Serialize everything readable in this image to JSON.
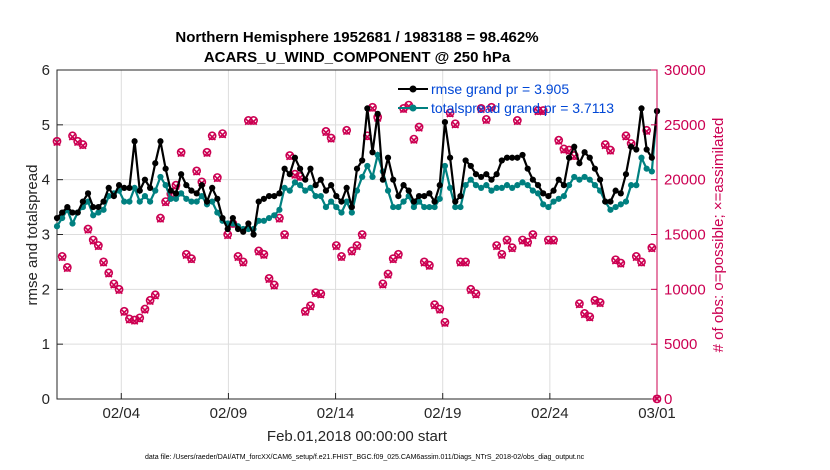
{
  "chart_data": {
    "type": "line",
    "title_line1": "Northern Hemisphere 1952681 / 1983188 = 98.462%",
    "title_line2": "ACARS_U_WIND_COMPONENT @ 250 hPa",
    "xlabel": "Feb.01,2018 00:00:00 start",
    "ylabel_left": "rmse and totalspread",
    "ylabel_right": "# of obs: o=possible; ×=assimilated",
    "footnote": "data file: /Users/raeder/DAI/ATM_forcXX/CAM6_setup/f.e21.FHIST_BGC.f09_025.CAM6assim.011/Diags_NTrS_2018-02/obs_diag_output.nc",
    "xlim": [
      0,
      28
    ],
    "ylim_left": [
      0,
      6
    ],
    "ylim_right": [
      0,
      30000
    ],
    "x_ticks": [
      {
        "pos": 3,
        "label": "02/04"
      },
      {
        "pos": 8,
        "label": "02/09"
      },
      {
        "pos": 13,
        "label": "02/14"
      },
      {
        "pos": 18,
        "label": "02/19"
      },
      {
        "pos": 23,
        "label": "02/24"
      },
      {
        "pos": 28,
        "label": "03/01"
      }
    ],
    "y_ticks_left": [
      "0",
      "1",
      "2",
      "3",
      "4",
      "5",
      "6"
    ],
    "y_ticks_right": [
      "0",
      "5000",
      "10000",
      "15000",
      "20000",
      "25000",
      "30000"
    ],
    "grid": true,
    "legend_placement": "top-right",
    "series": [
      {
        "name": "rmse grand pr = 3.905",
        "color": "#000000",
        "axis": "left",
        "values": [
          3.3,
          3.4,
          3.5,
          3.4,
          3.4,
          3.6,
          3.75,
          3.5,
          3.5,
          3.6,
          3.85,
          3.7,
          3.9,
          3.85,
          3.85,
          4.7,
          3.8,
          4.0,
          3.85,
          4.3,
          4.7,
          4.2,
          3.8,
          3.75,
          4.1,
          3.9,
          3.8,
          3.75,
          3.9,
          3.6,
          3.85,
          3.65,
          3.3,
          3.1,
          3.3,
          3.1,
          3.05,
          3.2,
          3.0,
          3.6,
          3.65,
          3.7,
          3.7,
          3.75,
          4.2,
          4.1,
          4.4,
          4.2,
          4.0,
          4.2,
          3.9,
          4.0,
          3.8,
          3.9,
          3.7,
          3.6,
          3.85,
          3.5,
          4.2,
          4.35,
          5.3,
          4.5,
          5.2,
          4.0,
          4.4,
          4.0,
          3.7,
          3.9,
          3.8,
          3.6,
          3.7,
          3.7,
          3.75,
          3.6,
          3.9,
          5.05,
          4.4,
          3.6,
          3.7,
          4.35,
          4.25,
          4.1,
          4.05,
          4.1,
          4.0,
          4.1,
          4.35,
          4.4,
          4.4,
          4.4,
          4.45,
          4.2,
          4.0,
          3.9,
          3.75,
          3.7,
          3.8,
          4.0,
          3.9,
          4.4,
          4.6,
          4.3,
          4.5,
          4.4,
          4.2,
          4.0,
          3.6,
          3.6,
          3.8,
          3.75,
          4.1,
          4.6,
          4.55,
          5.3,
          4.55,
          4.4,
          5.25
        ]
      },
      {
        "name": "totalspread grand pr = 3.7113",
        "color": "#008080",
        "axis": "left",
        "values": [
          3.15,
          3.3,
          3.45,
          3.2,
          3.4,
          3.5,
          3.6,
          3.35,
          3.4,
          3.45,
          3.7,
          3.75,
          3.8,
          3.6,
          3.6,
          3.85,
          3.6,
          3.7,
          3.6,
          3.8,
          4.05,
          3.9,
          3.65,
          3.65,
          3.75,
          3.65,
          3.6,
          3.6,
          3.7,
          3.55,
          3.6,
          3.4,
          3.25,
          3.2,
          3.2,
          3.15,
          3.1,
          3.1,
          3.1,
          3.25,
          3.25,
          3.3,
          3.35,
          3.45,
          3.85,
          3.8,
          3.95,
          3.9,
          3.8,
          3.85,
          3.7,
          3.7,
          3.5,
          3.6,
          3.5,
          3.4,
          3.6,
          3.4,
          3.8,
          4.05,
          4.25,
          4.05,
          4.45,
          4.15,
          3.8,
          3.5,
          3.5,
          3.6,
          3.7,
          3.5,
          3.6,
          3.5,
          3.5,
          3.5,
          3.65,
          4.25,
          3.85,
          3.5,
          3.5,
          3.9,
          4.0,
          3.9,
          3.85,
          3.9,
          3.8,
          3.85,
          3.85,
          3.9,
          3.85,
          3.9,
          3.95,
          3.9,
          3.8,
          3.75,
          3.55,
          3.5,
          3.6,
          3.65,
          3.7,
          3.9,
          4.05,
          4.0,
          4.05,
          4.0,
          3.9,
          3.8,
          3.6,
          3.45,
          3.5,
          3.55,
          3.6,
          3.9,
          3.9,
          4.4,
          4.2,
          4.15,
          5.25
        ]
      },
      {
        "name": "possible",
        "color": "#cc0052",
        "axis": "right",
        "marker": "circle",
        "values": [
          23500,
          13000,
          12000,
          24000,
          23500,
          23200,
          15500,
          14500,
          14000,
          12500,
          11500,
          10500,
          10000,
          8000,
          7300,
          7200,
          7400,
          8200,
          9000,
          9500,
          16500,
          18000,
          18700,
          19500,
          22500,
          13200,
          12800,
          20800,
          19800,
          22500,
          24000,
          20200,
          24200,
          15000,
          16000,
          13000,
          12500,
          25400,
          25400,
          13500,
          13200,
          11000,
          10400,
          16500,
          15000,
          22200,
          20500,
          20300,
          8000,
          8500,
          9700,
          9600,
          24400,
          23800,
          14000,
          13000,
          24500,
          13500,
          14000,
          15000,
          24000,
          26600,
          25700,
          10500,
          11400,
          12800,
          13200,
          26500,
          26800,
          23700,
          24800,
          12500,
          12200,
          8600,
          8200,
          7000,
          26100,
          25100,
          12500,
          12500,
          10000,
          9600,
          26500,
          25500,
          26600,
          14000,
          13200,
          14500,
          13800,
          25400,
          14500,
          14300,
          15000,
          26300,
          26300,
          14500,
          14500,
          23600,
          22800,
          22700,
          22200,
          8700,
          7800,
          7500,
          9000,
          8800,
          23200,
          22700,
          12700,
          12400,
          24000,
          23300,
          13000,
          12500,
          24500,
          13800,
          10
        ]
      },
      {
        "name": "assimilated",
        "color": "#cc0052",
        "axis": "right",
        "marker": "x",
        "values": [
          23400,
          12900,
          11900,
          23900,
          23400,
          23100,
          15400,
          14400,
          13900,
          12400,
          11400,
          10400,
          9900,
          7900,
          7200,
          7100,
          7300,
          8100,
          8900,
          9400,
          16400,
          17900,
          18600,
          19400,
          22400,
          13100,
          12700,
          20700,
          19700,
          22400,
          23900,
          20100,
          24100,
          14900,
          15900,
          12900,
          12400,
          25300,
          25300,
          13400,
          13100,
          10900,
          10300,
          16400,
          14900,
          22100,
          20400,
          20200,
          7900,
          8400,
          9600,
          9500,
          24300,
          23700,
          13900,
          12900,
          24400,
          13400,
          13900,
          14900,
          23900,
          26500,
          25600,
          10400,
          11300,
          12700,
          13100,
          26400,
          26700,
          23600,
          24700,
          12400,
          12100,
          8500,
          8100,
          6900,
          26000,
          25000,
          12400,
          12400,
          9900,
          9500,
          26400,
          25400,
          26500,
          13900,
          13100,
          14400,
          13700,
          25300,
          14400,
          14200,
          14900,
          26200,
          26200,
          14400,
          14400,
          23500,
          22700,
          22600,
          22100,
          8600,
          7700,
          7400,
          8900,
          8700,
          23100,
          22600,
          12600,
          12300,
          23900,
          23200,
          12900,
          12400,
          24400,
          13700,
          10
        ]
      }
    ]
  }
}
